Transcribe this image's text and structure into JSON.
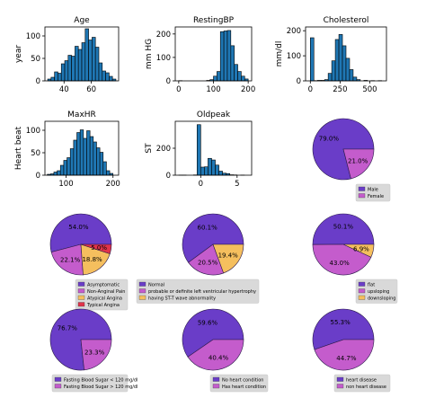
{
  "colors": {
    "hist_fill": "#1f77b4",
    "hist_edge": "#000000",
    "pie_purple": "#6a3dc8",
    "pie_orchid": "#c45ccc",
    "pie_orange": "#f5bf5e",
    "pie_red": "#e0334a",
    "legend_bg": "#d9d9d9"
  },
  "chart_data": [
    {
      "type": "bar",
      "subtype": "histogram",
      "title": "Age",
      "xlabel": "",
      "ylabel": "year",
      "xlim": [
        26,
        80
      ],
      "ylim": [
        0,
        120
      ],
      "xticks": [
        40,
        60
      ],
      "yticks": [
        0,
        50,
        100
      ],
      "bins": [
        {
          "x0": 28,
          "x1": 30.5,
          "y": 4
        },
        {
          "x0": 30.5,
          "x1": 33,
          "y": 8
        },
        {
          "x0": 33,
          "x1": 35.5,
          "y": 20
        },
        {
          "x0": 35.5,
          "x1": 38,
          "y": 17
        },
        {
          "x0": 38,
          "x1": 40.5,
          "y": 38
        },
        {
          "x0": 40.5,
          "x1": 43,
          "y": 45
        },
        {
          "x0": 43,
          "x1": 45.5,
          "y": 57
        },
        {
          "x0": 45.5,
          "x1": 48,
          "y": 55
        },
        {
          "x0": 48,
          "x1": 50.5,
          "y": 77
        },
        {
          "x0": 50.5,
          "x1": 53,
          "y": 70
        },
        {
          "x0": 53,
          "x1": 55.5,
          "y": 85
        },
        {
          "x0": 55.5,
          "x1": 58,
          "y": 116
        },
        {
          "x0": 58,
          "x1": 60.5,
          "y": 91
        },
        {
          "x0": 60.5,
          "x1": 63,
          "y": 97
        },
        {
          "x0": 63,
          "x1": 65.5,
          "y": 75
        },
        {
          "x0": 65.5,
          "x1": 68,
          "y": 40
        },
        {
          "x0": 68,
          "x1": 70.5,
          "y": 22
        },
        {
          "x0": 70.5,
          "x1": 73,
          "y": 18
        },
        {
          "x0": 73,
          "x1": 75.5,
          "y": 10
        },
        {
          "x0": 75.5,
          "x1": 78,
          "y": 4
        }
      ]
    },
    {
      "type": "bar",
      "subtype": "histogram",
      "title": "RestingBP",
      "xlabel": "",
      "ylabel": "mm HG",
      "xlim": [
        -10,
        210
      ],
      "ylim": [
        0,
        230
      ],
      "xticks": [
        0,
        100,
        200
      ],
      "yticks": [
        0,
        100,
        200
      ],
      "bins": [
        {
          "x0": 0,
          "x1": 10,
          "y": 1
        },
        {
          "x0": 80,
          "x1": 90,
          "y": 2
        },
        {
          "x0": 90,
          "x1": 100,
          "y": 5
        },
        {
          "x0": 100,
          "x1": 110,
          "y": 20
        },
        {
          "x0": 110,
          "x1": 120,
          "y": 40
        },
        {
          "x0": 120,
          "x1": 130,
          "y": 210
        },
        {
          "x0": 130,
          "x1": 140,
          "y": 213
        },
        {
          "x0": 140,
          "x1": 150,
          "y": 215
        },
        {
          "x0": 150,
          "x1": 160,
          "y": 150
        },
        {
          "x0": 160,
          "x1": 170,
          "y": 70
        },
        {
          "x0": 170,
          "x1": 180,
          "y": 40
        },
        {
          "x0": 180,
          "x1": 190,
          "y": 20
        },
        {
          "x0": 190,
          "x1": 200,
          "y": 8
        }
      ]
    },
    {
      "type": "bar",
      "subtype": "histogram",
      "title": "Cholesterol",
      "xlabel": "",
      "ylabel": "mm/dl",
      "xlim": [
        -40,
        640
      ],
      "ylim": [
        0,
        215
      ],
      "xticks": [
        0,
        250,
        500
      ],
      "yticks": [
        0,
        100,
        200
      ],
      "bins": [
        {
          "x0": 0,
          "x1": 30,
          "y": 172
        },
        {
          "x0": 30,
          "x1": 60,
          "y": 1
        },
        {
          "x0": 60,
          "x1": 90,
          "y": 2
        },
        {
          "x0": 90,
          "x1": 120,
          "y": 2
        },
        {
          "x0": 120,
          "x1": 150,
          "y": 5
        },
        {
          "x0": 150,
          "x1": 180,
          "y": 30
        },
        {
          "x0": 180,
          "x1": 210,
          "y": 80
        },
        {
          "x0": 210,
          "x1": 240,
          "y": 165
        },
        {
          "x0": 240,
          "x1": 270,
          "y": 185
        },
        {
          "x0": 270,
          "x1": 300,
          "y": 140
        },
        {
          "x0": 300,
          "x1": 330,
          "y": 90
        },
        {
          "x0": 330,
          "x1": 360,
          "y": 45
        },
        {
          "x0": 360,
          "x1": 390,
          "y": 15
        },
        {
          "x0": 390,
          "x1": 420,
          "y": 5
        },
        {
          "x0": 450,
          "x1": 480,
          "y": 2
        },
        {
          "x0": 510,
          "x1": 540,
          "y": 1
        },
        {
          "x0": 570,
          "x1": 600,
          "y": 1
        }
      ]
    },
    {
      "type": "bar",
      "subtype": "histogram",
      "title": "MaxHR",
      "xlabel": "",
      "ylabel": "Heart beat",
      "xlim": [
        55,
        212
      ],
      "ylim": [
        0,
        120
      ],
      "xticks": [
        100,
        200
      ],
      "yticks": [
        0,
        50,
        100
      ],
      "bins": [
        {
          "x0": 60,
          "x1": 67,
          "y": 2
        },
        {
          "x0": 67,
          "x1": 74,
          "y": 3
        },
        {
          "x0": 74,
          "x1": 81,
          "y": 7
        },
        {
          "x0": 81,
          "x1": 88,
          "y": 10
        },
        {
          "x0": 88,
          "x1": 95,
          "y": 22
        },
        {
          "x0": 95,
          "x1": 102,
          "y": 33
        },
        {
          "x0": 102,
          "x1": 109,
          "y": 39
        },
        {
          "x0": 109,
          "x1": 116,
          "y": 59
        },
        {
          "x0": 116,
          "x1": 123,
          "y": 78
        },
        {
          "x0": 123,
          "x1": 130,
          "y": 95
        },
        {
          "x0": 130,
          "x1": 137,
          "y": 101
        },
        {
          "x0": 137,
          "x1": 144,
          "y": 82
        },
        {
          "x0": 144,
          "x1": 151,
          "y": 99
        },
        {
          "x0": 151,
          "x1": 158,
          "y": 86
        },
        {
          "x0": 158,
          "x1": 165,
          "y": 74
        },
        {
          "x0": 165,
          "x1": 172,
          "y": 61
        },
        {
          "x0": 172,
          "x1": 179,
          "y": 51
        },
        {
          "x0": 179,
          "x1": 186,
          "y": 30
        },
        {
          "x0": 186,
          "x1": 193,
          "y": 10
        },
        {
          "x0": 193,
          "x1": 200,
          "y": 4
        }
      ]
    },
    {
      "type": "bar",
      "subtype": "histogram",
      "title": "Oldpeak",
      "xlabel": "",
      "ylabel": "ST",
      "xlim": [
        -3.5,
        7
      ],
      "ylim": [
        0,
        400
      ],
      "xticks": [
        0,
        5
      ],
      "yticks": [
        0,
        200
      ],
      "bins": [
        {
          "x0": -3,
          "x1": -2.5,
          "y": 1
        },
        {
          "x0": -2.5,
          "x1": -2,
          "y": 1
        },
        {
          "x0": -1,
          "x1": -0.5,
          "y": 2
        },
        {
          "x0": -0.5,
          "x1": 0,
          "y": 375
        },
        {
          "x0": 0,
          "x1": 0.5,
          "y": 60
        },
        {
          "x0": 0.5,
          "x1": 1,
          "y": 62
        },
        {
          "x0": 1,
          "x1": 1.5,
          "y": 125
        },
        {
          "x0": 1.5,
          "x1": 2,
          "y": 113
        },
        {
          "x0": 2,
          "x1": 2.5,
          "y": 75
        },
        {
          "x0": 2.5,
          "x1": 3,
          "y": 30
        },
        {
          "x0": 3,
          "x1": 3.5,
          "y": 15
        },
        {
          "x0": 3.5,
          "x1": 4,
          "y": 12
        },
        {
          "x0": 4,
          "x1": 4.5,
          "y": 3
        },
        {
          "x0": 4.5,
          "x1": 5,
          "y": 2
        },
        {
          "x0": 5.5,
          "x1": 6,
          "y": 1
        }
      ]
    },
    {
      "type": "pie",
      "legend_placement": "lower-right",
      "slices": [
        {
          "label": "Male",
          "value": 79.0,
          "text": "79.0%",
          "color": "#6a3dc8"
        },
        {
          "label": "Female",
          "value": 21.0,
          "text": "21.0%",
          "color": "#c45ccc"
        }
      ]
    },
    {
      "type": "pie",
      "legend_placement": "lower-right",
      "slices": [
        {
          "label": "Asymptomatic",
          "value": 54.0,
          "text": "54.0%",
          "color": "#6a3dc8"
        },
        {
          "label": "Non-Anginal Pain",
          "value": 22.1,
          "text": "22.1%",
          "color": "#c45ccc"
        },
        {
          "label": "Atypical Angina",
          "value": 18.8,
          "text": "18.8%",
          "color": "#f5bf5e"
        },
        {
          "label": "Typical Angina",
          "value": 5.0,
          "text": "5.0%",
          "color": "#e0334a"
        }
      ]
    },
    {
      "type": "pie",
      "legend_placement": "lower-right",
      "slices": [
        {
          "label": "Normal",
          "value": 60.1,
          "text": "60.1%",
          "color": "#6a3dc8"
        },
        {
          "label": "probable or definite left ventricular hypertrophy",
          "value": 20.5,
          "text": "20.5%",
          "color": "#c45ccc"
        },
        {
          "label": "having ST-T wave abnormality",
          "value": 19.4,
          "text": "19.4%",
          "color": "#f5bf5e"
        }
      ]
    },
    {
      "type": "pie",
      "legend_placement": "lower-right",
      "slices": [
        {
          "label": "flat",
          "value": 50.1,
          "text": "50.1%",
          "color": "#6a3dc8"
        },
        {
          "label": "upsloping",
          "value": 43.0,
          "text": "43.0%",
          "color": "#c45ccc"
        },
        {
          "label": "downsloping",
          "value": 6.9,
          "text": "6.9%",
          "color": "#f5bf5e"
        }
      ]
    },
    {
      "type": "pie",
      "legend_placement": "lower-right",
      "slices": [
        {
          "label": "Fasting Blood Sugar < 120 mg/dl",
          "value": 76.7,
          "text": "76.7%",
          "color": "#6a3dc8"
        },
        {
          "label": "Fasting Blood Sugar > 120 mg/dl",
          "value": 23.3,
          "text": "23.3%",
          "color": "#c45ccc"
        }
      ]
    },
    {
      "type": "pie",
      "legend_placement": "lower-right",
      "slices": [
        {
          "label": "No heart condition",
          "value": 59.6,
          "text": "59.6%",
          "color": "#6a3dc8"
        },
        {
          "label": "Has heart condition",
          "value": 40.4,
          "text": "40.4%",
          "color": "#c45ccc"
        }
      ]
    },
    {
      "type": "pie",
      "legend_placement": "lower-right",
      "slices": [
        {
          "label": "heart disease",
          "value": 55.3,
          "text": "55.3%",
          "color": "#6a3dc8"
        },
        {
          "label": "non heart disease",
          "value": 44.7,
          "text": "44.7%",
          "color": "#c45ccc"
        }
      ]
    }
  ]
}
